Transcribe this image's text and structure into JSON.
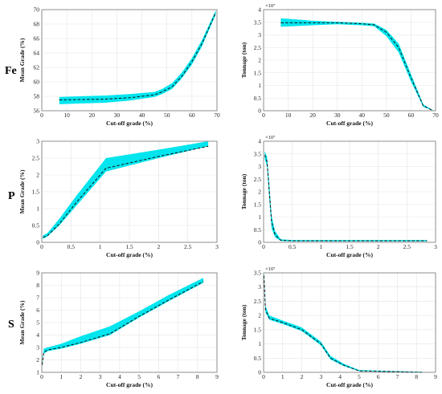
{
  "row_labels": [
    "Fe",
    "P",
    "S"
  ],
  "colors": {
    "band": "#00e5ee",
    "line": "#111111",
    "grid": "#e4e4e4"
  },
  "chart_data": [
    {
      "type": "area",
      "row": "Fe",
      "col": "left",
      "xlabel": "Cut-off grade (%)",
      "ylabel": "Mean Grade (%)",
      "xlim": [
        0,
        70
      ],
      "ylim": [
        56,
        70
      ],
      "xticks": [
        0,
        10,
        20,
        30,
        40,
        50,
        60,
        70
      ],
      "yticks": [
        56,
        58,
        60,
        62,
        64,
        66,
        68,
        70
      ],
      "grid": true,
      "legend": "none",
      "line_style": "dashed",
      "x": [
        7,
        15,
        25,
        35,
        45,
        48,
        52,
        56,
        60,
        64,
        69.5
      ],
      "mean": [
        57.5,
        57.55,
        57.6,
        57.8,
        58.2,
        58.6,
        59.3,
        60.8,
        62.8,
        65.3,
        69.6
      ],
      "lower": [
        56.9,
        57.0,
        57.1,
        57.4,
        57.9,
        58.3,
        59.0,
        60.5,
        62.4,
        64.9,
        69.3
      ],
      "upper": [
        57.9,
        58.0,
        58.1,
        58.3,
        58.6,
        59.0,
        59.8,
        61.3,
        63.3,
        65.8,
        69.9
      ]
    },
    {
      "type": "area",
      "row": "Fe",
      "col": "right",
      "xlabel": "Cut-off grade (%)",
      "ylabel": "Tonnage (ton)",
      "exponent": "×10⁷",
      "xlim": [
        0,
        70
      ],
      "ylim": [
        0,
        4
      ],
      "xticks": [
        0,
        10,
        20,
        30,
        40,
        50,
        60,
        70
      ],
      "yticks": [
        0,
        0.5,
        1,
        1.5,
        2,
        2.5,
        3,
        3.5,
        4
      ],
      "grid": true,
      "legend": "none",
      "line_style": "dashed",
      "x": [
        7,
        20,
        30,
        40,
        45,
        50,
        55,
        60,
        65,
        69
      ],
      "mean": [
        3.48,
        3.48,
        3.48,
        3.44,
        3.4,
        3.1,
        2.5,
        1.3,
        0.2,
        0.0
      ],
      "lower": [
        3.32,
        3.38,
        3.42,
        3.38,
        3.34,
        2.95,
        2.3,
        1.15,
        0.15,
        0.0
      ],
      "upper": [
        3.66,
        3.56,
        3.52,
        3.48,
        3.45,
        3.2,
        2.65,
        1.45,
        0.25,
        0.02
      ]
    },
    {
      "type": "area",
      "row": "P",
      "col": "left",
      "xlabel": "Cut-off grade (%)",
      "ylabel": "Mean Grade (%)",
      "xlim": [
        0,
        3
      ],
      "ylim": [
        0,
        3
      ],
      "xticks": [
        0,
        0.5,
        1,
        1.5,
        2,
        2.5,
        3
      ],
      "yticks": [
        0,
        0.5,
        1,
        1.5,
        2,
        2.5,
        3
      ],
      "grid": true,
      "legend": "none",
      "line_style": "dashed",
      "x": [
        0.02,
        0.1,
        0.3,
        0.6,
        1.1,
        2.0,
        2.85
      ],
      "mean": [
        0.15,
        0.2,
        0.55,
        1.2,
        2.2,
        2.55,
        2.85
      ],
      "lower": [
        0.1,
        0.18,
        0.5,
        1.1,
        2.1,
        2.5,
        2.85
      ],
      "upper": [
        0.2,
        0.28,
        0.7,
        1.4,
        2.5,
        2.75,
        3.0
      ]
    },
    {
      "type": "area",
      "row": "P",
      "col": "right",
      "xlabel": "Cut-off grade (%)",
      "ylabel": "Tonnage (ton)",
      "exponent": "×10⁷",
      "xlim": [
        0,
        3
      ],
      "ylim": [
        0,
        4
      ],
      "xticks": [
        0,
        0.5,
        1,
        1.5,
        2,
        2.5,
        3
      ],
      "yticks": [
        0,
        0.5,
        1,
        1.5,
        2,
        2.5,
        3,
        3.5,
        4
      ],
      "grid": true,
      "legend": "none",
      "line_style": "dashed",
      "x": [
        0.02,
        0.06,
        0.1,
        0.14,
        0.2,
        0.3,
        0.5,
        1.5,
        2.85
      ],
      "mean": [
        3.45,
        3.2,
        2.0,
        0.8,
        0.3,
        0.08,
        0.06,
        0.06,
        0.06
      ],
      "lower": [
        3.3,
        3.0,
        1.7,
        0.55,
        0.2,
        0.05,
        0.04,
        0.04,
        0.04
      ],
      "upper": [
        3.6,
        3.4,
        2.3,
        1.05,
        0.45,
        0.12,
        0.09,
        0.09,
        0.09
      ]
    },
    {
      "type": "area",
      "row": "S",
      "col": "left",
      "xlabel": "Cut-off grade (%)",
      "ylabel": "Mean Grade (%)",
      "xlim": [
        0,
        9
      ],
      "ylim": [
        1,
        9
      ],
      "xticks": [
        0,
        1,
        2,
        3,
        4,
        5,
        6,
        7,
        8,
        9
      ],
      "yticks": [
        1,
        2,
        3,
        4,
        5,
        6,
        7,
        8,
        9
      ],
      "grid": true,
      "legend": "none",
      "line_style": "dashed",
      "x": [
        0.02,
        0.1,
        0.3,
        1,
        2,
        3.5,
        5,
        6.5,
        8.3
      ],
      "mean": [
        1.6,
        2.6,
        2.8,
        3.0,
        3.4,
        4.1,
        5.5,
        6.8,
        8.3
      ],
      "lower": [
        1.5,
        2.5,
        2.7,
        2.9,
        3.3,
        4.0,
        5.4,
        6.7,
        8.2
      ],
      "upper": [
        1.7,
        2.9,
        3.0,
        3.3,
        3.9,
        4.7,
        5.9,
        7.2,
        8.6
      ]
    },
    {
      "type": "area",
      "row": "S",
      "col": "right",
      "xlabel": "Cut-off grade (%)",
      "ylabel": "Tonnage (ton)",
      "exponent": "×10⁷",
      "xlim": [
        0,
        9
      ],
      "ylim": [
        0,
        3.5
      ],
      "xticks": [
        0,
        1,
        2,
        3,
        4,
        5,
        6,
        7,
        8,
        9
      ],
      "yticks": [
        0,
        0.5,
        1,
        1.5,
        2,
        2.5,
        3,
        3.5
      ],
      "grid": true,
      "legend": "none",
      "line_style": "dashed",
      "x": [
        0.02,
        0.1,
        0.3,
        1,
        2,
        3,
        3.5,
        4.2,
        5,
        6.5,
        8.3
      ],
      "mean": [
        3.4,
        2.2,
        1.9,
        1.75,
        1.5,
        1.0,
        0.5,
        0.25,
        0.05,
        0.03,
        0.0
      ],
      "lower": [
        3.3,
        2.1,
        1.85,
        1.7,
        1.45,
        0.95,
        0.45,
        0.22,
        0.04,
        0.02,
        0.0
      ],
      "upper": [
        3.5,
        2.35,
        2.0,
        1.82,
        1.58,
        1.08,
        0.58,
        0.3,
        0.08,
        0.05,
        0.02
      ]
    }
  ]
}
